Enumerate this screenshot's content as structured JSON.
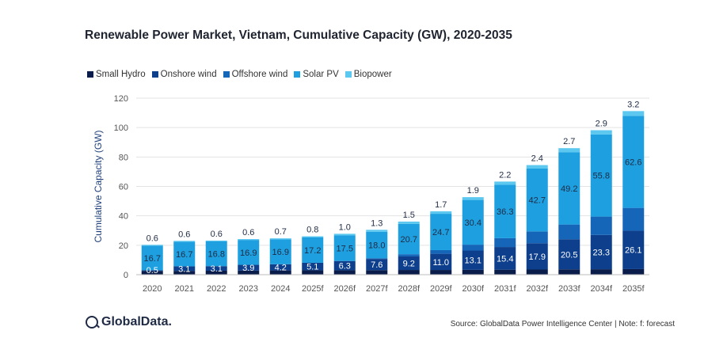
{
  "header": {
    "title": "Renewable Power Market, Vietnam, Cumulative Capacity (GW), 2020-2035"
  },
  "footer": {
    "logo_text": "GlobalData.",
    "source": "Source: GlobalData Power Intelligence Center | Note: f: forecast"
  },
  "colors": {
    "small_hydro": "#0a1d4a",
    "onshore_wind": "#0e3f8c",
    "offshore_wind": "#1565b8",
    "solar_pv": "#1ea0e0",
    "biopower": "#5cc8f0"
  },
  "chart_data": {
    "type": "bar",
    "stacked": true,
    "title": "Renewable Power Market, Vietnam, Cumulative Capacity (GW), 2020-2035",
    "xlabel": "",
    "ylabel": "Cumulative Capacity (GW)",
    "ylim": [
      0,
      120
    ],
    "yticks": [
      0,
      20,
      40,
      60,
      80,
      100,
      120
    ],
    "grid": true,
    "legend_position": "top-left",
    "categories": [
      "2020",
      "2021",
      "2022",
      "2023",
      "2024",
      "2025f",
      "2026f",
      "2027f",
      "2028f",
      "2029f",
      "2030f",
      "2031f",
      "2032f",
      "2033f",
      "2034f",
      "2035f"
    ],
    "series": [
      {
        "name": "Small Hydro",
        "color": "#0a1d4a",
        "values": [
          2.5,
          2.6,
          2.7,
          2.8,
          2.9,
          3.0,
          3.0,
          3.1,
          3.2,
          3.2,
          3.3,
          3.4,
          3.5,
          3.6,
          3.7,
          3.8
        ],
        "labels": [
          "",
          "",
          "",
          "",
          "",
          "",
          "",
          "",
          "",
          "",
          "",
          "",
          "",
          "",
          "",
          ""
        ]
      },
      {
        "name": "Onshore wind",
        "color": "#0e3f8c",
        "values": [
          0.5,
          3.1,
          3.1,
          3.9,
          4.2,
          5.1,
          6.3,
          7.6,
          9.2,
          11.0,
          13.1,
          15.4,
          17.9,
          20.5,
          23.3,
          26.1
        ],
        "labels": [
          "0.5",
          "3.1",
          "3.1",
          "3.9",
          "4.2",
          "5.1",
          "6.3",
          "7.6",
          "9.2",
          "11.0",
          "13.1",
          "15.4",
          "17.9",
          "20.5",
          "23.3",
          "26.1"
        ]
      },
      {
        "name": "Offshore wind",
        "color": "#1565b8",
        "values": [
          0,
          0,
          0,
          0,
          0,
          0,
          0,
          0.5,
          1.5,
          2.5,
          4.0,
          6.0,
          8.0,
          10.0,
          12.5,
          15.5
        ],
        "labels": [
          "",
          "",
          "",
          "",
          "",
          "",
          "",
          "",
          "",
          "",
          "",
          "",
          "",
          "",
          "",
          ""
        ]
      },
      {
        "name": "Solar PV",
        "color": "#1ea0e0",
        "values": [
          16.7,
          16.7,
          16.8,
          16.9,
          16.9,
          17.2,
          17.5,
          18.0,
          20.7,
          24.7,
          30.4,
          36.3,
          42.7,
          49.2,
          55.8,
          62.6
        ],
        "labels": [
          "16.7",
          "16.7",
          "16.8",
          "16.9",
          "16.9",
          "17.2",
          "17.5",
          "18.0",
          "20.7",
          "24.7",
          "30.4",
          "36.3",
          "42.7",
          "49.2",
          "55.8",
          "62.6"
        ]
      },
      {
        "name": "Biopower",
        "color": "#5cc8f0",
        "values": [
          0.6,
          0.6,
          0.6,
          0.6,
          0.7,
          0.8,
          1.0,
          1.3,
          1.5,
          1.7,
          1.9,
          2.2,
          2.4,
          2.7,
          2.9,
          3.2
        ],
        "labels": [
          "0.6",
          "0.6",
          "0.6",
          "0.6",
          "0.7",
          "0.8",
          "1.0",
          "1.3",
          "1.5",
          "1.7",
          "1.9",
          "2.2",
          "2.4",
          "2.7",
          "2.9",
          "3.2"
        ]
      }
    ]
  }
}
